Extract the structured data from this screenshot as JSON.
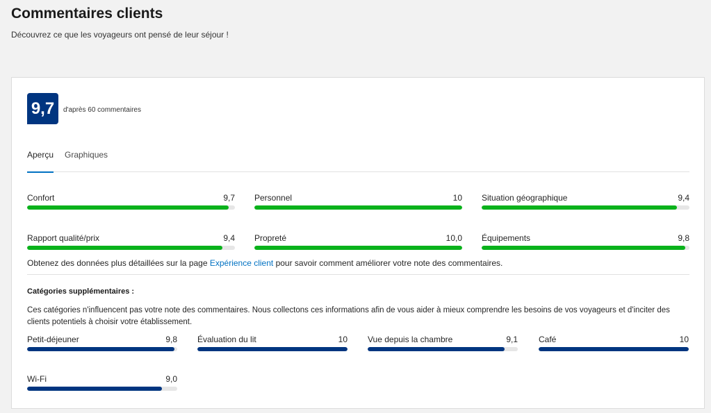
{
  "header": {
    "title": "Commentaires clients",
    "subtitle": "Découvrez ce que les voyageurs ont pensé de leur séjour !"
  },
  "score": {
    "value": "9,7",
    "caption": "d'après 60 commentaires"
  },
  "tabs": [
    {
      "label": "Aperçu",
      "active": true
    },
    {
      "label": "Graphiques",
      "active": false
    }
  ],
  "main_metrics": [
    {
      "label": "Confort",
      "value": "9,7",
      "score": 9.7
    },
    {
      "label": "Personnel",
      "value": "10",
      "score": 10
    },
    {
      "label": "Situation géographique",
      "value": "9,4",
      "score": 9.4
    },
    {
      "label": "Rapport qualité/prix",
      "value": "9,4",
      "score": 9.4
    },
    {
      "label": "Propreté",
      "value": "10,0",
      "score": 10
    },
    {
      "label": "Équipements",
      "value": "9,8",
      "score": 9.8
    }
  ],
  "info": {
    "prefix": "Obtenez des données plus détaillées sur la page ",
    "link": "Expérience client",
    "suffix": " pour savoir comment améliorer votre note des commentaires."
  },
  "extra": {
    "title": "Catégories supplémentaires :",
    "description": "Ces catégories n'influencent pas votre note des commentaires. Nous collectons ces informations afin de vous aider à mieux comprendre les besoins de vos voyageurs et d'inciter des clients potentiels à choisir votre établissement.",
    "metrics": [
      {
        "label": "Petit-déjeuner",
        "value": "9,8",
        "score": 9.8
      },
      {
        "label": "Évaluation du lit",
        "value": "10",
        "score": 10
      },
      {
        "label": "Vue depuis la chambre",
        "value": "9,1",
        "score": 9.1
      },
      {
        "label": "Café",
        "value": "10",
        "score": 10
      },
      {
        "label": "Wi-Fi",
        "value": "9,0",
        "score": 9.0
      }
    ]
  },
  "colors": {
    "primary_blue": "#003580",
    "bar_green": "#0ab21b",
    "link_blue": "#0071c2"
  }
}
